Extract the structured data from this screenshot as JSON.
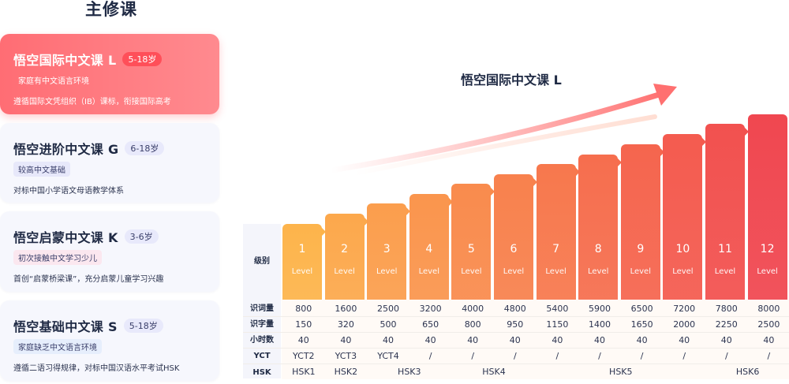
{
  "section_title": "主修课",
  "courses": [
    {
      "name": "悟空国际中文课 L",
      "age": "5-18岁",
      "tag": "家庭有中文语言环境",
      "desc": "遵循国际文凭组织（IB）课标，衔接国际高考"
    },
    {
      "name": "悟空进阶中文课 G",
      "age": "6-18岁",
      "tag": "较高中文基础",
      "desc": "对标中国小学语文母语教学体系"
    },
    {
      "name": "悟空启蒙中文课 K",
      "age": "3-6岁",
      "tag": "初次接触中文学习少儿",
      "desc": "首创“启蒙桥梁课”，充分启蒙儿童学习兴趣"
    },
    {
      "name": "悟空基础中文课 S",
      "age": "5-18岁",
      "tag": "家庭缺乏中文语言环境",
      "desc": "遵循二语习得规律，对标中国汉语水平考试HSK"
    }
  ],
  "chart": {
    "title": "悟空国际中文课 L",
    "levels_label": "级别",
    "level_word": "Level",
    "levels": [
      "1",
      "2",
      "3",
      "4",
      "5",
      "6",
      "7",
      "8",
      "9",
      "10",
      "11",
      "12"
    ],
    "colors": [
      "#fdb44b",
      "#fca84c",
      "#fb9e4d",
      "#fa954d",
      "#f98b4d",
      "#f8814d",
      "#f7784d",
      "#f66e4e",
      "#f5654e",
      "#f45b4f",
      "#f2514f",
      "#f04750"
    ]
  },
  "table": {
    "row_labels": [
      "识词量",
      "识字量",
      "小时数",
      "YCT",
      "HSK"
    ],
    "vocab": [
      "800",
      "1600",
      "2500",
      "3200",
      "4000",
      "4800",
      "5400",
      "5900",
      "6500",
      "7200",
      "7800",
      "8000"
    ],
    "chars": [
      "150",
      "320",
      "500",
      "650",
      "800",
      "950",
      "1150",
      "1400",
      "1650",
      "2000",
      "2250",
      "2500"
    ],
    "hours": [
      "40",
      "40",
      "40",
      "40",
      "40",
      "40",
      "40",
      "40",
      "40",
      "40",
      "40",
      "40"
    ],
    "yct": [
      "YCT2",
      "YCT3",
      "YCT4",
      "/",
      "/",
      "/",
      "/",
      "/",
      "/",
      "/",
      "/",
      "/"
    ],
    "hsk": [
      "HSK1",
      "HSK2",
      "HSK3",
      "HSK4",
      "HSK5",
      "HSK6"
    ]
  }
}
